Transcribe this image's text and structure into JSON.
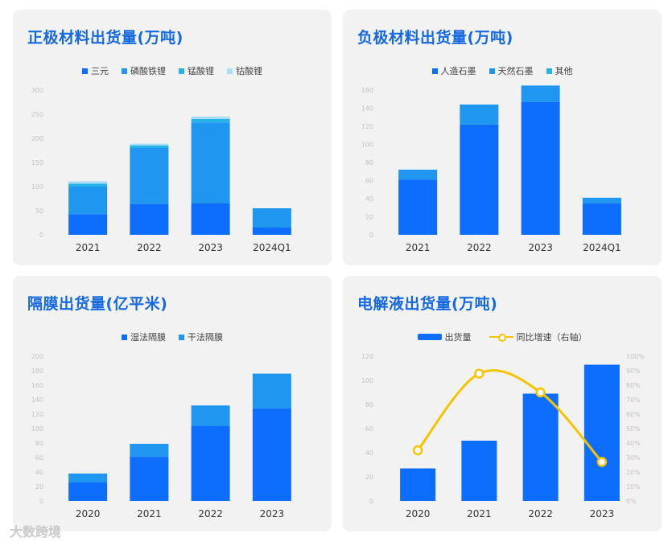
{
  "chart_data": [
    {
      "type": "bar",
      "stacked": true,
      "title": "正极材料出货量(万吨)",
      "categories": [
        "2021",
        "2022",
        "2023",
        "2024Q1"
      ],
      "ylim": [
        0,
        300
      ],
      "yticks": [
        "0",
        "50",
        "100",
        "150",
        "200",
        "250",
        "300"
      ],
      "series": [
        {
          "name": "三元",
          "color": "#0d6efd",
          "values": [
            43,
            64,
            65,
            15
          ]
        },
        {
          "name": "磷酸铁锂",
          "color": "#1f96ef",
          "values": [
            57,
            116,
            168,
            40
          ]
        },
        {
          "name": "锰酸锂",
          "color": "#26b3e8",
          "values": [
            6,
            5,
            7,
            0
          ]
        },
        {
          "name": "钴酸锂",
          "color": "#a8dcf7",
          "values": [
            5,
            4,
            5,
            0
          ]
        }
      ]
    },
    {
      "type": "bar",
      "stacked": true,
      "title": "负极材料出货量(万吨)",
      "categories": [
        "2021",
        "2022",
        "2023",
        "2024Q1"
      ],
      "ylim": [
        0,
        160
      ],
      "yticks": [
        "0",
        "20",
        "40",
        "60",
        "80",
        "100",
        "120",
        "140",
        "160"
      ],
      "series": [
        {
          "name": "人造石墨",
          "color": "#0d6efd",
          "values": [
            61,
            122,
            147,
            35
          ]
        },
        {
          "name": "天然石墨",
          "color": "#1f96ef",
          "values": [
            11,
            22,
            18,
            6
          ]
        },
        {
          "name": "其他",
          "color": "#26b3e8",
          "values": [
            0,
            0,
            0,
            0
          ]
        }
      ]
    },
    {
      "type": "bar",
      "stacked": true,
      "title": "隔膜出货量(亿平米)",
      "categories": [
        "2020",
        "2021",
        "2022",
        "2023"
      ],
      "ylim": [
        0,
        200
      ],
      "yticks": [
        "0",
        "20",
        "40",
        "60",
        "80",
        "100",
        "120",
        "140",
        "160",
        "180",
        "200"
      ],
      "series": [
        {
          "name": "湿法隔膜",
          "color": "#0d6efd",
          "values": [
            26,
            61,
            104,
            128
          ]
        },
        {
          "name": "干法隔膜",
          "color": "#1f96ef",
          "values": [
            12,
            18,
            28,
            48
          ]
        }
      ]
    },
    {
      "type": "bar-line",
      "title": "电解液出货量(万吨)",
      "categories": [
        "2020",
        "2021",
        "2022",
        "2023"
      ],
      "ylim": [
        0,
        120
      ],
      "yticks": [
        "0",
        "20",
        "40",
        "60",
        "80",
        "100",
        "120"
      ],
      "y2lim": [
        0,
        100
      ],
      "y2ticks": [
        "0%",
        "10%",
        "20%",
        "30%",
        "40%",
        "50%",
        "60%",
        "70%",
        "80%",
        "90%",
        "100%"
      ],
      "bar_series": {
        "name": "出货量",
        "color": "#0d6efd",
        "values": [
          27,
          50,
          89,
          113
        ]
      },
      "line_series": {
        "name": "同比增速（右轴）",
        "color": "#f5c400",
        "values": [
          35,
          88,
          75,
          27
        ]
      }
    }
  ],
  "watermark": "大数跨境"
}
